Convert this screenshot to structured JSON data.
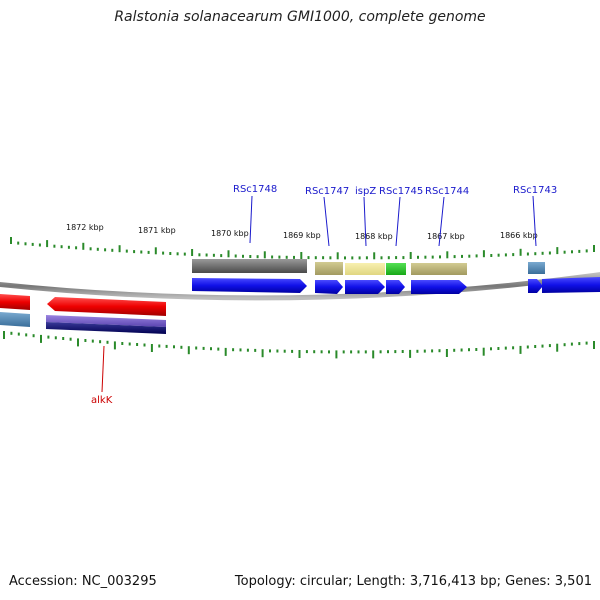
{
  "title": "Ralstonia solanacearum GMI1000, complete genome",
  "footer": {
    "accession": "Accession: NC_003295",
    "stats": "Topology: circular; Length: 3,716,413 bp; Genes: 3,501"
  },
  "colors": {
    "tick": "#2a8a2a",
    "cds": "#1010e8",
    "cds_reverse": "#ee0000",
    "label_forward": "#1a1acc",
    "label_reverse": "#cc0000",
    "backbone": "#888888"
  },
  "scale_labels": [
    "1872 kbp",
    "1871 kbp",
    "1870 kbp",
    "1869 kbp",
    "1868 kbp",
    "1867 kbp",
    "1866 kbp"
  ],
  "gene_labels": {
    "rsc1748": "RSc1748",
    "rsc1747": "RSc1747",
    "ispz": "ispZ",
    "rsc1745": "RSc1745",
    "rsc1744": "RSc1744",
    "rsc1743": "RSc1743",
    "alkk": "alkK"
  }
}
